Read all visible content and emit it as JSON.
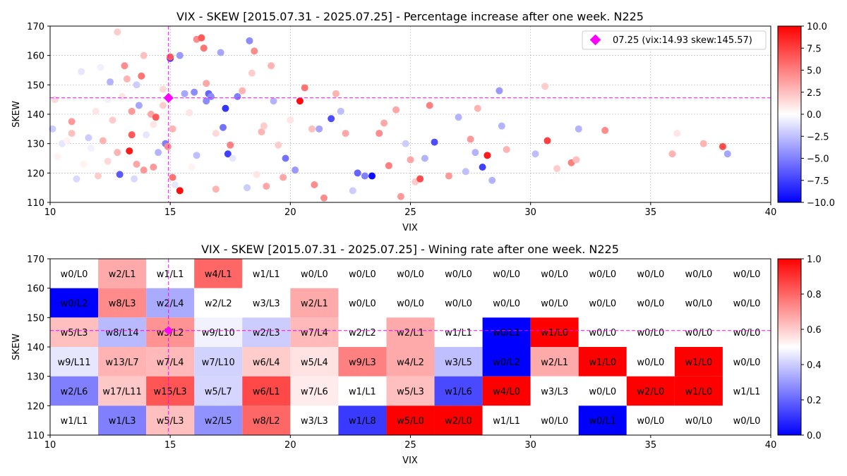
{
  "chart_data": [
    {
      "type": "scatter",
      "title": "VIX - SKEW [2015.07.31 - 2025.07.25]  - Percentage increase after one week. N225",
      "xlabel": "VIX",
      "ylabel": "SKEW",
      "xlim": [
        10,
        40
      ],
      "ylim": [
        110,
        170
      ],
      "xticks": [
        "10",
        "15",
        "20",
        "25",
        "30",
        "35",
        "40"
      ],
      "yticks": [
        "110",
        "120",
        "130",
        "140",
        "150",
        "160",
        "170"
      ],
      "grid": true,
      "legend": {
        "position": "top-right",
        "label": "07.25 (vix:14.93 skew:145.57)"
      },
      "current": {
        "vix": 14.93,
        "skew": 145.57,
        "color": "#ff00ff"
      },
      "colorbar": {
        "min": -10,
        "max": 10,
        "ticks": [
          "−10.0",
          "−7.5",
          "−5.0",
          "−2.5",
          "0.0",
          "2.5",
          "5.0",
          "7.5",
          "10.0"
        ]
      },
      "colormap": "bwr",
      "points": [
        [
          10.1,
          135.0,
          -2.0
        ],
        [
          10.2,
          145.0,
          1.5
        ],
        [
          10.3,
          125.5,
          0.5
        ],
        [
          10.5,
          130.0,
          -1.0
        ],
        [
          10.7,
          131.0,
          0.5
        ],
        [
          10.9,
          137.5,
          4.0
        ],
        [
          10.9,
          133.5,
          2.5
        ],
        [
          11.1,
          118.0,
          -1.5
        ],
        [
          11.3,
          154.5,
          -1.0
        ],
        [
          11.4,
          123.0,
          0.5
        ],
        [
          11.6,
          132.0,
          -2.0
        ],
        [
          11.7,
          128.5,
          -0.5
        ],
        [
          11.9,
          141.0,
          1.0
        ],
        [
          12.0,
          119.0,
          2.0
        ],
        [
          12.1,
          156.0,
          -0.5
        ],
        [
          12.2,
          131.0,
          3.0
        ],
        [
          12.4,
          124.0,
          1.5
        ],
        [
          12.4,
          145.0,
          -0.5
        ],
        [
          12.5,
          151.0,
          -3.0
        ],
        [
          12.6,
          138.0,
          2.0
        ],
        [
          12.8,
          127.0,
          3.0
        ],
        [
          12.8,
          168.0,
          2.0
        ],
        [
          12.9,
          119.5,
          -6.5
        ],
        [
          13.0,
          146.0,
          1.0
        ],
        [
          13.1,
          156.5,
          4.5
        ],
        [
          13.2,
          152.0,
          3.0
        ],
        [
          13.3,
          127.5,
          9.0
        ],
        [
          13.4,
          133.0,
          6.5
        ],
        [
          13.4,
          141.0,
          4.0
        ],
        [
          13.5,
          118.0,
          -1.5
        ],
        [
          13.6,
          150.0,
          -2.0
        ],
        [
          13.6,
          123.0,
          3.5
        ],
        [
          13.7,
          143.0,
          -3.5
        ],
        [
          13.8,
          153.0,
          5.5
        ],
        [
          13.9,
          160.0,
          2.5
        ],
        [
          13.9,
          121.0,
          4.0
        ],
        [
          14.0,
          133.0,
          -1.0
        ],
        [
          14.2,
          140.0,
          3.5
        ],
        [
          14.3,
          122.0,
          4.0
        ],
        [
          14.3,
          136.5,
          1.0
        ],
        [
          14.4,
          139.0,
          6.5
        ],
        [
          14.5,
          127.0,
          -3.0
        ],
        [
          14.7,
          143.0,
          2.0
        ],
        [
          14.7,
          148.5,
          1.5
        ],
        [
          14.8,
          130.0,
          -5.0
        ],
        [
          14.9,
          129.0,
          4.5
        ],
        [
          15.0,
          159.0,
          -7.5
        ],
        [
          15.0,
          159.5,
          6.5
        ],
        [
          15.1,
          135.0,
          3.0
        ],
        [
          15.1,
          118.5,
          5.5
        ],
        [
          15.2,
          116.0,
          -1.0
        ],
        [
          15.4,
          114.0,
          9.5
        ],
        [
          15.4,
          160.0,
          -4.0
        ],
        [
          15.6,
          147.0,
          -3.5
        ],
        [
          15.8,
          140.5,
          1.0
        ],
        [
          15.9,
          122.0,
          0.5
        ],
        [
          16.0,
          147.5,
          -4.5
        ],
        [
          16.1,
          165.5,
          4.5
        ],
        [
          16.1,
          126.0,
          -2.5
        ],
        [
          16.3,
          166.0,
          6.5
        ],
        [
          16.4,
          162.5,
          5.5
        ],
        [
          16.5,
          144.5,
          -4.5
        ],
        [
          16.5,
          150.5,
          3.5
        ],
        [
          16.6,
          147.0,
          -6.0
        ],
        [
          16.7,
          146.0,
          -4.5
        ],
        [
          16.9,
          133.5,
          1.5
        ],
        [
          16.9,
          114.5,
          3.0
        ],
        [
          17.1,
          161.0,
          -3.5
        ],
        [
          17.2,
          135.5,
          -5.5
        ],
        [
          17.3,
          142.0,
          -8.0
        ],
        [
          17.4,
          126.5,
          -7.5
        ],
        [
          17.5,
          129.5,
          5.0
        ],
        [
          17.6,
          125.0,
          -1.0
        ],
        [
          17.8,
          146.0,
          -5.0
        ],
        [
          18.0,
          148.0,
          3.0
        ],
        [
          18.2,
          115.0,
          -2.0
        ],
        [
          18.3,
          165.0,
          -4.5
        ],
        [
          18.4,
          154.0,
          2.0
        ],
        [
          18.5,
          161.5,
          4.5
        ],
        [
          18.6,
          119.5,
          1.0
        ],
        [
          18.8,
          134.0,
          3.0
        ],
        [
          18.9,
          136.0,
          2.0
        ],
        [
          19.0,
          115.5,
          3.5
        ],
        [
          19.2,
          156.5,
          3.0
        ],
        [
          19.3,
          144.5,
          -3.0
        ],
        [
          19.5,
          129.5,
          2.0
        ],
        [
          19.7,
          118.5,
          3.5
        ],
        [
          19.8,
          125.0,
          -5.5
        ],
        [
          20.0,
          138.0,
          1.0
        ],
        [
          20.2,
          121.0,
          -4.0
        ],
        [
          20.4,
          144.5,
          9.5
        ],
        [
          20.6,
          149.0,
          5.5
        ],
        [
          20.9,
          135.0,
          2.5
        ],
        [
          21.0,
          116.0,
          4.5
        ],
        [
          21.2,
          135.0,
          -3.5
        ],
        [
          21.4,
          111.5,
          4.5
        ],
        [
          21.7,
          138.5,
          -7.0
        ],
        [
          21.9,
          147.0,
          3.0
        ],
        [
          22.1,
          141.0,
          -2.5
        ],
        [
          22.3,
          133.5,
          3.5
        ],
        [
          22.6,
          114.0,
          -2.0
        ],
        [
          22.8,
          120.0,
          -6.0
        ],
        [
          23.1,
          119.0,
          -5.0
        ],
        [
          23.4,
          119.0,
          -9.5
        ],
        [
          23.7,
          133.5,
          4.5
        ],
        [
          23.9,
          137.0,
          3.5
        ],
        [
          24.1,
          122.5,
          5.0
        ],
        [
          24.4,
          141.5,
          3.5
        ],
        [
          24.6,
          112.0,
          4.0
        ],
        [
          24.8,
          130.0,
          -2.0
        ],
        [
          25.0,
          124.5,
          3.5
        ],
        [
          25.2,
          117.0,
          2.0
        ],
        [
          25.4,
          118.0,
          7.0
        ],
        [
          25.6,
          125.0,
          -3.0
        ],
        [
          25.8,
          143.0,
          5.0
        ],
        [
          26.0,
          130.5,
          -7.0
        ],
        [
          26.6,
          119.0,
          4.0
        ],
        [
          27.0,
          139.0,
          -3.0
        ],
        [
          27.3,
          120.5,
          -2.5
        ],
        [
          27.5,
          131.5,
          4.0
        ],
        [
          27.7,
          127.0,
          -3.0
        ],
        [
          27.8,
          142.0,
          3.0
        ],
        [
          28.0,
          122.0,
          -7.5
        ],
        [
          28.2,
          126.0,
          9.0
        ],
        [
          28.4,
          117.5,
          -3.0
        ],
        [
          28.7,
          148.0,
          -4.0
        ],
        [
          28.8,
          136.0,
          -3.0
        ],
        [
          29.0,
          128.0,
          3.0
        ],
        [
          30.2,
          126.5,
          -2.5
        ],
        [
          30.6,
          149.5,
          2.0
        ],
        [
          30.7,
          131.0,
          7.5
        ],
        [
          31.1,
          121.5,
          2.0
        ],
        [
          31.7,
          123.5,
          5.0
        ],
        [
          31.9,
          124.5,
          2.5
        ],
        [
          32.0,
          135.0,
          -3.0
        ],
        [
          33.1,
          134.5,
          4.5
        ],
        [
          35.9,
          126.5,
          3.0
        ],
        [
          36.1,
          133.5,
          1.0
        ],
        [
          37.2,
          130.0,
          3.0
        ],
        [
          38.0,
          129.0,
          7.0
        ],
        [
          38.2,
          126.5,
          -3.5
        ]
      ]
    },
    {
      "type": "heatmap",
      "title": "VIX - SKEW [2015.07.31 - 2025.07.25]  - Wining rate after one week. N225",
      "xlabel": "VIX",
      "ylabel": "SKEW",
      "xlim": [
        10,
        40
      ],
      "ylim": [
        110,
        170
      ],
      "xticks": [
        "10",
        "15",
        "20",
        "25",
        "30",
        "35",
        "40"
      ],
      "yticks": [
        "110",
        "120",
        "130",
        "140",
        "150",
        "160",
        "170"
      ],
      "colorbar": {
        "min": 0,
        "max": 1,
        "ticks": [
          "0.0",
          "0.2",
          "0.4",
          "0.6",
          "0.8",
          "1.0"
        ]
      },
      "colormap": "bwr",
      "cell_x_edges": [
        10,
        12,
        14,
        16,
        18,
        20,
        22,
        24,
        26,
        28,
        30,
        32,
        34,
        36,
        38,
        40
      ],
      "cell_y_edges": [
        110,
        120,
        130,
        140,
        150,
        160,
        170
      ],
      "rows_top_to_bottom": [
        [
          "w0/L0",
          "w2/L1",
          "w1/L1",
          "w4/L1",
          "w1/L1",
          "w0/L0",
          "w0/L0",
          "w0/L0",
          "w0/L0",
          "w0/L0",
          "w0/L0",
          "w0/L0",
          "w0/L0",
          "w0/L0",
          "w0/L0"
        ],
        [
          "w0/L2",
          "w8/L3",
          "w2/L4",
          "w2/L2",
          "w3/L3",
          "w2/L1",
          "w0/L0",
          "w0/L0",
          "w0/L0",
          "w0/L0",
          "w0/L0",
          "w0/L0",
          "w0/L0",
          "w0/L0",
          "w0/L0"
        ],
        [
          "w5/L3",
          "w8/L14",
          "w5/L2",
          "w9/L10",
          "w2/L3",
          "w7/L4",
          "w2/L2",
          "w2/L1",
          "w1/L1",
          "w0/L1",
          "w1/L0",
          "w0/L0",
          "w0/L0",
          "w0/L0",
          "w0/L0"
        ],
        [
          "w9/L11",
          "w13/L7",
          "w7/L4",
          "w7/L10",
          "w6/L4",
          "w5/L4",
          "w9/L3",
          "w4/L2",
          "w3/L5",
          "w0/L2",
          "w2/L1",
          "w1/L0",
          "w0/L0",
          "w1/L0",
          "w0/L0"
        ],
        [
          "w2/L6",
          "w17/L11",
          "w15/L3",
          "w5/L7",
          "w6/L1",
          "w7/L6",
          "w1/L1",
          "w5/L3",
          "w1/L6",
          "w4/L0",
          "w3/L3",
          "w0/L0",
          "w2/L0",
          "w1/L0",
          "w1/L1"
        ],
        [
          "w1/L1",
          "w1/L3",
          "w5/L3",
          "w2/L5",
          "w8/L2",
          "w3/L3",
          "w1/L8",
          "w5/L0",
          "w2/L0",
          "w1/L1",
          "w0/L0",
          "w0/L1",
          "w0/L0",
          "w0/L0",
          "w0/L0"
        ]
      ],
      "current": {
        "vix": 14.93,
        "skew": 145.57,
        "color": "#ff00ff"
      }
    }
  ]
}
